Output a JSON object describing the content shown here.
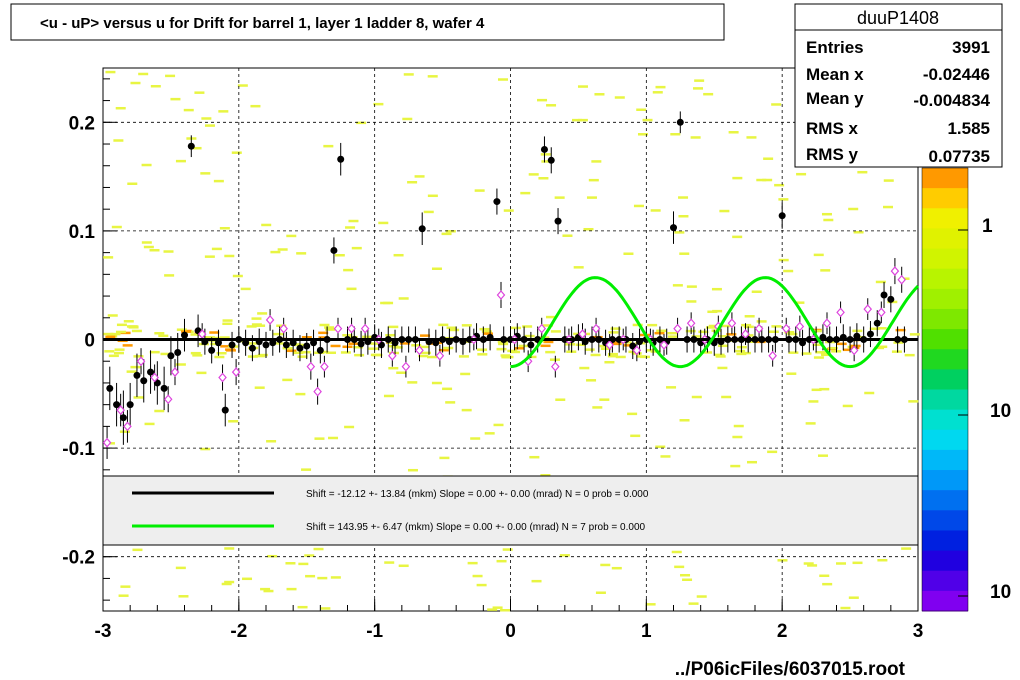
{
  "title": "<u - uP>       versus   u for Drift for barrel 1, layer 1 ladder 8, wafer 4",
  "footer": "../P06icFiles/6037015.root",
  "stats": {
    "name": "duuP1408",
    "rows": [
      {
        "label": "Entries",
        "value": "3991"
      },
      {
        "label": "Mean x",
        "value": "-0.02446"
      },
      {
        "label": "Mean y",
        "value": "-0.004834"
      },
      {
        "label": "RMS x",
        "value": "1.585"
      },
      {
        "label": "RMS y",
        "value": "0.07735"
      }
    ]
  },
  "legend": [
    {
      "color": "#000000",
      "text": "Shift =   -12.12 +- 13.84 (mkm) Slope =     0.00 +- 0.00 (mrad)  N = 0 prob = 0.000"
    },
    {
      "color": "#00ee00",
      "text": "Shift =   143.95 +- 6.47 (mkm) Slope =     0.00 +- 0.00 (mrad)  N = 7 prob = 0.000"
    }
  ],
  "palette_labels": [
    "1",
    "10",
    "10"
  ],
  "chart_data": {
    "type": "scatter",
    "xlim": [
      -3,
      3
    ],
    "ylim": [
      -0.25,
      0.25
    ],
    "x_ticks": [
      "-3",
      "-2",
      "-1",
      "0",
      "1",
      "2",
      "3"
    ],
    "y_ticks": [
      "-0.2",
      "-0.1",
      "0",
      "0.1",
      "0.2"
    ],
    "grid": true,
    "colors": {
      "black_line": "#000000",
      "green_fit": "#00ee00",
      "hist_cell": "#e8f542",
      "hist_cell_hot": "#ff9900",
      "open_marker": "#dd44dd"
    },
    "series": [
      {
        "marker": "filled-circle",
        "x": [
          -2.95,
          -2.9,
          -2.85,
          -2.8,
          -2.75,
          -2.7,
          -2.65,
          -2.6,
          -2.55,
          -2.5,
          -2.45,
          -2.4,
          -2.35,
          -2.3,
          -2.25,
          -2.2,
          -2.15,
          -2.1,
          -2.05,
          -2.0,
          -1.95,
          -1.9,
          -1.85,
          -1.8,
          -1.75,
          -1.7,
          -1.65,
          -1.6,
          -1.55,
          -1.5,
          -1.45,
          -1.4,
          -1.35,
          -1.3,
          -1.25,
          -1.2,
          -1.15,
          -1.1,
          -1.05,
          -1.0,
          -0.95,
          -0.9,
          -0.85,
          -0.8,
          -0.75,
          -0.7,
          -0.65,
          -0.6,
          -0.55,
          -0.5,
          -0.45,
          -0.4,
          -0.35,
          -0.3,
          -0.25,
          -0.2,
          -0.15,
          -0.1,
          -0.05,
          0.0,
          0.05,
          0.1,
          0.15,
          0.2,
          0.25,
          0.3,
          0.35,
          0.4,
          0.45,
          0.5,
          0.55,
          0.6,
          0.65,
          0.7,
          0.75,
          0.8,
          0.85,
          0.9,
          0.95,
          1.0,
          1.05,
          1.1,
          1.15,
          1.2,
          1.25,
          1.3,
          1.35,
          1.4,
          1.45,
          1.5,
          1.55,
          1.6,
          1.65,
          1.7,
          1.75,
          1.8,
          1.85,
          1.9,
          1.95,
          2.0,
          2.05,
          2.1,
          2.15,
          2.2,
          2.25,
          2.3,
          2.35,
          2.4,
          2.45,
          2.5,
          2.55,
          2.6,
          2.65,
          2.7,
          2.75,
          2.8,
          2.85,
          2.9
        ],
        "y": [
          -0.045,
          -0.06,
          -0.072,
          -0.06,
          -0.033,
          -0.038,
          -0.03,
          -0.04,
          -0.045,
          -0.015,
          -0.012,
          0.004,
          0.178,
          0.008,
          -0.002,
          -0.01,
          -0.003,
          -0.065,
          -0.005,
          0.0,
          -0.003,
          -0.008,
          -0.002,
          -0.005,
          -0.003,
          0.0,
          -0.005,
          -0.003,
          -0.008,
          -0.006,
          -0.003,
          -0.01,
          0.0,
          0.082,
          0.166,
          0.0,
          0.0,
          -0.004,
          -0.002,
          0.002,
          -0.005,
          0.0,
          -0.003,
          0.0,
          0.0,
          0.0,
          0.102,
          -0.002,
          -0.003,
          0.0,
          -0.002,
          0.0,
          -0.002,
          0.0,
          0.003,
          0.0,
          0.002,
          0.127,
          0.0,
          0.0,
          0.003,
          0.0,
          -0.005,
          0.0,
          0.175,
          0.165,
          0.109,
          0.0,
          0.0,
          0.002,
          -0.002,
          0.0,
          0.0,
          -0.003,
          0.0,
          0.0,
          0.0,
          -0.006,
          -0.002,
          0.0,
          -0.003,
          0.0,
          -0.002,
          0.103,
          0.2,
          0.0,
          0.0,
          -0.003,
          0.0,
          -0.003,
          -0.002,
          0.0,
          0.0,
          0.0,
          0.0,
          0.0,
          0.0,
          0.0,
          0.0,
          0.114,
          0.0,
          0.0,
          -0.003,
          0.0,
          0.0,
          0.002,
          0.0,
          0.0,
          0.002,
          0.0,
          0.003,
          0.0,
          0.005,
          0.015,
          0.041,
          0.037,
          0.0,
          0.0
        ],
        "yerr": [
          0.02,
          0.02,
          0.025,
          0.02,
          0.02,
          0.02,
          0.02,
          0.02,
          0.02,
          0.018,
          0.018,
          0.015,
          0.01,
          0.015,
          0.012,
          0.012,
          0.012,
          0.015,
          0.012,
          0.012,
          0.012,
          0.012,
          0.012,
          0.012,
          0.012,
          0.012,
          0.012,
          0.012,
          0.012,
          0.012,
          0.012,
          0.012,
          0.012,
          0.012,
          0.015,
          0.012,
          0.012,
          0.012,
          0.012,
          0.012,
          0.012,
          0.012,
          0.012,
          0.012,
          0.012,
          0.012,
          0.015,
          0.012,
          0.012,
          0.012,
          0.012,
          0.012,
          0.012,
          0.012,
          0.012,
          0.012,
          0.012,
          0.012,
          0.012,
          0.012,
          0.012,
          0.012,
          0.012,
          0.012,
          0.012,
          0.012,
          0.012,
          0.012,
          0.012,
          0.012,
          0.012,
          0.012,
          0.012,
          0.012,
          0.012,
          0.012,
          0.012,
          0.012,
          0.012,
          0.012,
          0.012,
          0.012,
          0.012,
          0.015,
          0.01,
          0.012,
          0.012,
          0.012,
          0.012,
          0.012,
          0.012,
          0.012,
          0.012,
          0.012,
          0.012,
          0.012,
          0.012,
          0.012,
          0.012,
          0.012,
          0.012,
          0.012,
          0.012,
          0.012,
          0.012,
          0.012,
          0.012,
          0.012,
          0.012,
          0.012,
          0.012,
          0.012,
          0.012,
          0.012,
          0.012,
          0.012,
          0.012,
          0.012
        ]
      },
      {
        "marker": "open-diamond",
        "x": [
          -2.97,
          -2.87,
          -2.82,
          -2.72,
          -2.62,
          -2.52,
          -2.47,
          -2.27,
          -2.12,
          -2.02,
          -1.77,
          -1.67,
          -1.47,
          -1.42,
          -1.37,
          -1.27,
          -1.17,
          -1.07,
          -0.97,
          -0.87,
          -0.77,
          -0.67,
          -0.52,
          -0.27,
          -0.07,
          0.03,
          0.13,
          0.23,
          0.33,
          0.43,
          0.53,
          0.63,
          0.73,
          0.83,
          0.93,
          1.03,
          1.13,
          1.23,
          1.33,
          1.43,
          1.53,
          1.63,
          1.73,
          1.83,
          1.93,
          2.03,
          2.13,
          2.23,
          2.33,
          2.43,
          2.53,
          2.63,
          2.73,
          2.83,
          2.88
        ],
        "y": [
          -0.095,
          -0.065,
          -0.08,
          -0.02,
          -0.035,
          -0.055,
          -0.03,
          0.005,
          -0.035,
          -0.03,
          0.018,
          0.01,
          -0.025,
          -0.048,
          -0.025,
          0.01,
          0.01,
          0.01,
          0.0,
          -0.015,
          -0.025,
          -0.01,
          -0.015,
          0.0,
          0.041,
          0.0,
          -0.02,
          0.01,
          -0.025,
          0.0,
          0.005,
          0.01,
          -0.005,
          0.0,
          -0.01,
          0.0,
          -0.005,
          0.01,
          0.015,
          0.0,
          0.012,
          0.015,
          0.005,
          0.01,
          -0.015,
          0.01,
          0.012,
          0.0,
          0.015,
          0.025,
          -0.01,
          0.028,
          0.025,
          0.063,
          0.055
        ],
        "yerr": [
          0.015,
          0.015,
          0.015,
          0.012,
          0.012,
          0.012,
          0.012,
          0.01,
          0.012,
          0.012,
          0.01,
          0.01,
          0.012,
          0.012,
          0.01,
          0.01,
          0.01,
          0.01,
          0.01,
          0.01,
          0.01,
          0.01,
          0.01,
          0.01,
          0.012,
          0.01,
          0.01,
          0.01,
          0.01,
          0.01,
          0.01,
          0.01,
          0.01,
          0.01,
          0.01,
          0.01,
          0.01,
          0.01,
          0.01,
          0.01,
          0.01,
          0.01,
          0.01,
          0.01,
          0.01,
          0.01,
          0.01,
          0.01,
          0.01,
          0.01,
          0.01,
          0.01,
          0.01,
          0.012,
          0.012
        ]
      }
    ],
    "fit_black": {
      "shift_um": -12.12,
      "slope": 0.0
    },
    "fit_green": {
      "baseline": 0.0,
      "amplitude": 0.025,
      "period": 1.25,
      "x_start": 0.0,
      "x_end": 3.0
    }
  }
}
